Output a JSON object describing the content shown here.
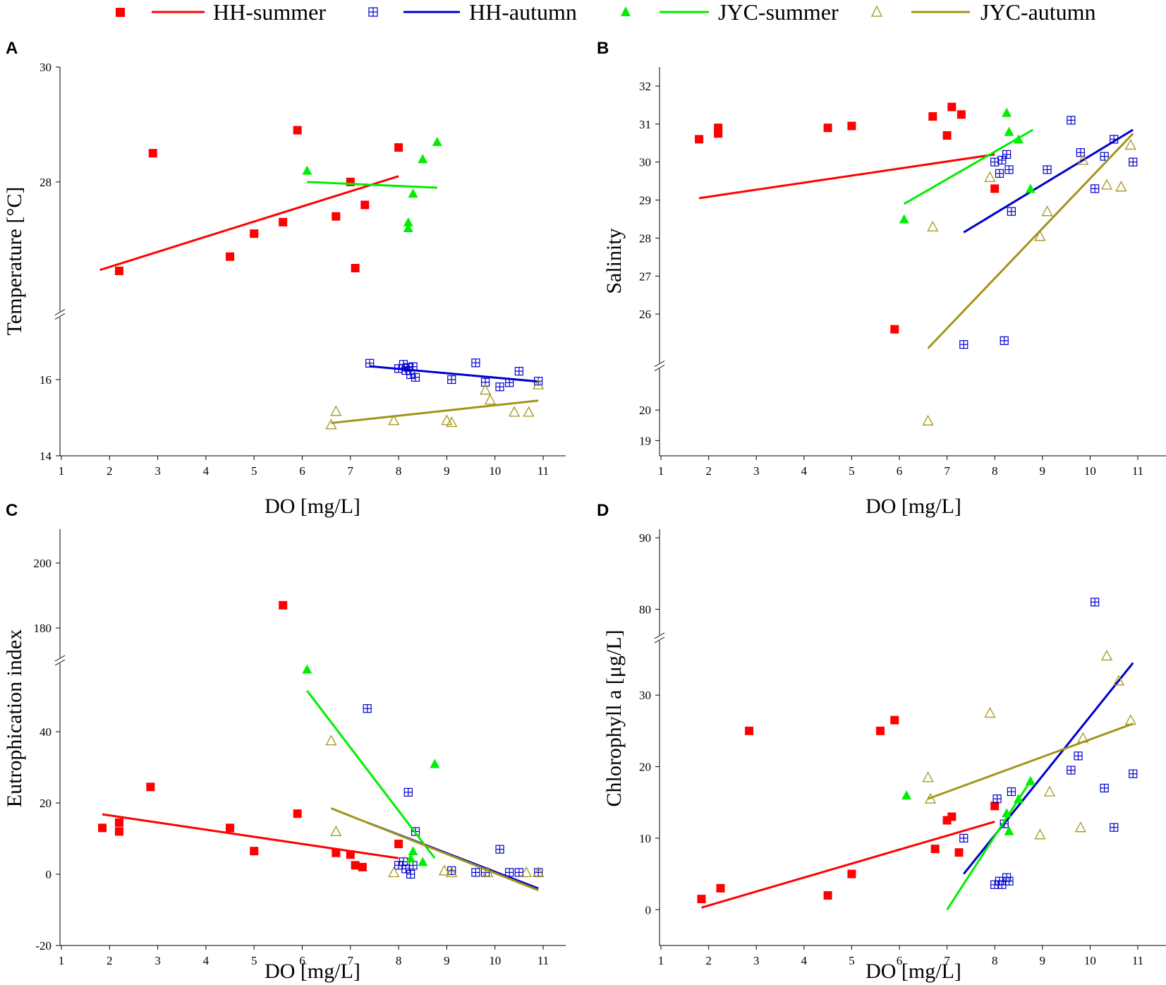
{
  "legend": [
    {
      "label": "HH-summer",
      "marker": "filled-square",
      "color": "#ff0000"
    },
    {
      "label": "HH-autumn",
      "marker": "crossed-square",
      "color": "#0000cc"
    },
    {
      "label": "JYC-summer",
      "marker": "filled-triangle",
      "color": "#00ee00"
    },
    {
      "label": "JYC-autumn",
      "marker": "open-triangle",
      "color": "#a39418"
    }
  ],
  "chart_data": [
    {
      "panel": "A",
      "type": "scatter",
      "xlabel": "DO [mg/L]",
      "ylabel": "Temperature [°C]",
      "xlim": [
        1,
        11.5
      ],
      "xticks": [
        1,
        2,
        3,
        4,
        5,
        6,
        7,
        8,
        9,
        10,
        11
      ],
      "ybreak": [
        16.5,
        26.5
      ],
      "ysegments": [
        {
          "range": [
            14,
            16.5
          ],
          "ticks": [
            14,
            16
          ]
        },
        {
          "range": [
            26.5,
            30
          ],
          "ticks": [
            28,
            30
          ]
        }
      ],
      "series": [
        {
          "name": "HH-summer",
          "x": [
            2.2,
            2.9,
            4.5,
            5.0,
            5.6,
            5.9,
            6.7,
            7.0,
            7.1,
            7.3,
            8.0
          ],
          "y": [
            26.2,
            28.5,
            26.7,
            27.1,
            27.3,
            28.9,
            27.4,
            28.0,
            26.5,
            27.6,
            28.6
          ],
          "fit": [
            [
              1.8,
              26.3
            ],
            [
              8.0,
              28.1
            ]
          ]
        },
        {
          "name": "HH-autumn",
          "x": [
            7.4,
            8.0,
            8.1,
            8.15,
            8.2,
            8.25,
            8.3,
            8.35,
            9.1,
            9.6,
            9.8,
            10.1,
            10.3,
            10.5,
            10.9
          ],
          "y": [
            16.43,
            16.29,
            16.4,
            16.24,
            16.32,
            16.13,
            16.34,
            16.06,
            16.0,
            16.44,
            15.93,
            15.81,
            15.92,
            16.22,
            15.96
          ],
          "fit": [
            [
              7.4,
              16.35
            ],
            [
              10.9,
              15.95
            ]
          ]
        },
        {
          "name": "JYC-summer",
          "x": [
            6.1,
            8.2,
            8.2,
            8.3,
            8.5,
            8.8
          ],
          "y": [
            28.2,
            27.3,
            27.2,
            27.8,
            28.4,
            28.7
          ],
          "fit": [
            [
              6.1,
              28.0
            ],
            [
              8.8,
              27.9
            ]
          ]
        },
        {
          "name": "JYC-autumn",
          "x": [
            6.6,
            6.7,
            7.9,
            9.0,
            9.1,
            9.8,
            9.9,
            10.4,
            10.7,
            10.9
          ],
          "y": [
            14.82,
            15.17,
            14.93,
            14.93,
            14.88,
            15.73,
            15.47,
            15.15,
            15.15,
            15.87
          ],
          "fit": [
            [
              6.6,
              14.86
            ],
            [
              10.9,
              15.45
            ]
          ]
        }
      ]
    },
    {
      "panel": "B",
      "type": "scatter",
      "xlabel": "DO [mg/L]",
      "ylabel": "Salinity",
      "xlim": [
        1,
        11.5
      ],
      "xticks": [
        1,
        2,
        3,
        4,
        5,
        6,
        7,
        8,
        9,
        10,
        11
      ],
      "ybreak": [
        21,
        25
      ],
      "ysegments": [
        {
          "range": [
            18.5,
            21
          ],
          "ticks": [
            19,
            20
          ]
        },
        {
          "range": [
            25,
            32.5
          ],
          "ticks": [
            26,
            27,
            28,
            29,
            30,
            31,
            32
          ]
        }
      ],
      "series": [
        {
          "name": "HH-summer",
          "x": [
            1.8,
            2.2,
            2.2,
            4.5,
            5.0,
            5.9,
            6.7,
            7.0,
            7.1,
            7.3,
            8.0
          ],
          "y": [
            30.6,
            30.75,
            30.9,
            30.9,
            30.95,
            25.6,
            31.2,
            30.7,
            31.45,
            31.25,
            29.3
          ],
          "fit": [
            [
              1.8,
              29.05
            ],
            [
              8.0,
              30.2
            ]
          ]
        },
        {
          "name": "HH-autumn",
          "x": [
            7.35,
            8.0,
            8.1,
            8.15,
            8.2,
            8.25,
            8.3,
            8.35,
            9.1,
            9.6,
            9.8,
            10.1,
            10.3,
            10.5,
            10.9
          ],
          "y": [
            25.2,
            30.0,
            29.7,
            30.05,
            25.3,
            30.2,
            29.8,
            28.7,
            29.8,
            31.1,
            30.25,
            29.3,
            30.15,
            30.6,
            30.0
          ],
          "fit": [
            [
              7.35,
              28.15
            ],
            [
              10.9,
              30.85
            ]
          ]
        },
        {
          "name": "JYC-summer",
          "x": [
            6.1,
            8.25,
            8.3,
            8.5,
            8.75
          ],
          "y": [
            28.5,
            31.3,
            30.8,
            30.6,
            29.3
          ],
          "fit": [
            [
              6.1,
              28.9
            ],
            [
              8.8,
              30.85
            ]
          ]
        },
        {
          "name": "JYC-autumn",
          "x": [
            6.6,
            6.7,
            7.9,
            8.95,
            9.1,
            9.85,
            10.35,
            10.65,
            10.85
          ],
          "y": [
            19.65,
            28.3,
            29.6,
            28.05,
            28.7,
            30.05,
            29.4,
            29.35,
            30.45
          ],
          "fit": [
            [
              6.6,
              25.1
            ],
            [
              10.9,
              30.75
            ]
          ]
        }
      ]
    },
    {
      "panel": "C",
      "type": "scatter",
      "xlabel": "DO [mg/L]",
      "ylabel": "Eutrophication index",
      "xlim": [
        1,
        11.5
      ],
      "xticks": [
        1,
        2,
        3,
        4,
        5,
        6,
        7,
        8,
        9,
        10,
        11
      ],
      "ybreak": [
        60,
        170
      ],
      "ysegments": [
        {
          "range": [
            -20,
            60
          ],
          "ticks": [
            -20,
            0,
            20,
            40
          ]
        },
        {
          "range": [
            170,
            210
          ],
          "ticks": [
            180,
            200
          ]
        }
      ],
      "series": [
        {
          "name": "HH-summer",
          "x": [
            1.85,
            2.2,
            2.2,
            2.85,
            4.5,
            5.0,
            5.6,
            5.9,
            6.7,
            7.0,
            7.1,
            7.25,
            8.0
          ],
          "y": [
            13,
            14.5,
            12,
            24.5,
            13,
            6.5,
            187,
            17,
            6,
            5.5,
            2.5,
            2,
            8.5
          ],
          "fit": [
            [
              1.85,
              16.8
            ],
            [
              8.0,
              4.5
            ]
          ]
        },
        {
          "name": "HH-autumn",
          "x": [
            7.35,
            8.0,
            8.1,
            8.15,
            8.2,
            8.25,
            8.3,
            8.35,
            9.1,
            9.6,
            9.8,
            10.1,
            10.3,
            10.5,
            10.9
          ],
          "y": [
            46.5,
            2.5,
            3.5,
            1.5,
            23,
            0,
            2.5,
            12,
            1,
            0.5,
            0.5,
            7,
            0.5,
            0.5,
            0.5
          ],
          "fit": [
            [
              7.35,
              14.5
            ],
            [
              10.9,
              -4.0
            ]
          ]
        },
        {
          "name": "JYC-summer",
          "x": [
            6.1,
            8.25,
            8.3,
            8.5,
            8.75
          ],
          "y": [
            57.5,
            4.5,
            6.5,
            3.5,
            31
          ],
          "fit": [
            [
              6.1,
              51.5
            ],
            [
              8.75,
              4.5
            ]
          ]
        },
        {
          "name": "JYC-autumn",
          "x": [
            6.6,
            6.7,
            7.9,
            8.95,
            9.1,
            9.85,
            10.65,
            10.9
          ],
          "y": [
            37.5,
            12,
            0.5,
            1,
            0.5,
            0.5,
            0.5,
            0.5
          ],
          "fit": [
            [
              6.6,
              18.5
            ],
            [
              10.9,
              -4.5
            ]
          ]
        }
      ]
    },
    {
      "panel": "D",
      "type": "scatter",
      "xlabel": "DO [mg/L]",
      "ylabel": "Chlorophyll a [μg/L]",
      "xlim": [
        1,
        11.5
      ],
      "xticks": [
        1,
        2,
        3,
        4,
        5,
        6,
        7,
        8,
        9,
        10,
        11
      ],
      "ybreak": [
        38,
        76
      ],
      "ysegments": [
        {
          "range": [
            -5,
            38
          ],
          "ticks": [
            0,
            10,
            20,
            30
          ]
        },
        {
          "range": [
            76,
            91
          ],
          "ticks": [
            80,
            90
          ]
        }
      ],
      "series": [
        {
          "name": "HH-summer",
          "x": [
            1.85,
            2.25,
            2.85,
            4.5,
            5.0,
            5.6,
            5.9,
            6.75,
            7.0,
            7.1,
            7.25,
            8.0
          ],
          "y": [
            1.5,
            3,
            25,
            2,
            5,
            25,
            26.5,
            8.5,
            12.5,
            13,
            8,
            14.5
          ],
          "fit": [
            [
              1.85,
              0.3
            ],
            [
              8.0,
              12.3
            ]
          ]
        },
        {
          "name": "HH-autumn",
          "x": [
            7.35,
            8.0,
            8.05,
            8.1,
            8.15,
            8.2,
            8.25,
            8.3,
            8.35,
            9.6,
            9.75,
            10.1,
            10.3,
            10.5,
            10.9
          ],
          "y": [
            10,
            3.5,
            15.5,
            4,
            3.5,
            12,
            4.5,
            4,
            16.5,
            19.5,
            21.5,
            81,
            17,
            11.5,
            19
          ],
          "fit": [
            [
              7.35,
              5.0
            ],
            [
              10.9,
              34.5
            ]
          ]
        },
        {
          "name": "JYC-summer",
          "x": [
            6.15,
            8.25,
            8.3,
            8.5,
            8.75
          ],
          "y": [
            16,
            13.5,
            11,
            15.5,
            18
          ],
          "fit": [
            [
              7.0,
              0.0
            ],
            [
              8.75,
              18.0
            ]
          ]
        },
        {
          "name": "JYC-autumn",
          "x": [
            6.6,
            6.65,
            7.9,
            8.95,
            9.15,
            9.8,
            9.85,
            10.35,
            10.6,
            10.85
          ],
          "y": [
            18.5,
            15.5,
            27.5,
            10.5,
            16.5,
            11.5,
            24,
            35.5,
            32,
            26.5
          ],
          "fit": [
            [
              6.6,
              15.5
            ],
            [
              10.9,
              26.0
            ]
          ]
        }
      ]
    }
  ]
}
